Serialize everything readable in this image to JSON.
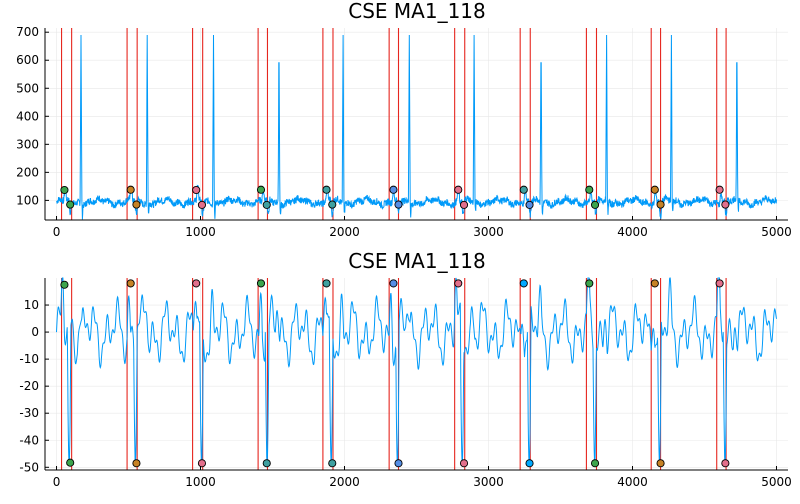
{
  "colors": {
    "signal": "#009af9",
    "marker_line": "#e6261f",
    "grid": "#e8e8e8",
    "axis": "#000000",
    "point_palette": [
      "#3da44d",
      "#c68225",
      "#e26f8b",
      "#3fa0a0",
      "#558ee5",
      "#00a9ff"
    ]
  },
  "chart_data": [
    {
      "type": "line",
      "title": "CSE MA1_118",
      "xlabel": "",
      "ylabel": "",
      "xlim": [
        -80,
        5080
      ],
      "ylim": [
        30,
        715
      ],
      "xticks": [
        0,
        1000,
        2000,
        3000,
        4000,
        5000
      ],
      "yticks": [
        100,
        200,
        300,
        400,
        500,
        600,
        700
      ],
      "grid": true,
      "legend": "none",
      "signal": {
        "baseline": 95,
        "noise": 12,
        "r_peak_value": 690,
        "r_peak_offset": 170,
        "beat_starts": [
          30,
          490,
          950,
          1405,
          1850,
          2310,
          2760,
          3225,
          3680,
          4130,
          4585
        ]
      },
      "vertical_lines": [
        35,
        105,
        490,
        560,
        945,
        1015,
        1400,
        1465,
        1850,
        1920,
        2310,
        2375,
        2765,
        2835,
        3220,
        3290,
        3680,
        3750,
        4130,
        4195,
        4585,
        4650
      ],
      "points": [
        {
          "x": 55,
          "y": 137,
          "color": "#3da44d"
        },
        {
          "x": 95,
          "y": 85,
          "color": "#3da44d"
        },
        {
          "x": 515,
          "y": 138,
          "color": "#c68225"
        },
        {
          "x": 555,
          "y": 85,
          "color": "#c68225"
        },
        {
          "x": 970,
          "y": 137,
          "color": "#e26f8b"
        },
        {
          "x": 1010,
          "y": 84,
          "color": "#e26f8b"
        },
        {
          "x": 1420,
          "y": 138,
          "color": "#3da44d"
        },
        {
          "x": 1460,
          "y": 84,
          "color": "#3fa0a0"
        },
        {
          "x": 1875,
          "y": 138,
          "color": "#3fa0a0"
        },
        {
          "x": 1915,
          "y": 85,
          "color": "#3fa0a0"
        },
        {
          "x": 2340,
          "y": 138,
          "color": "#558ee5"
        },
        {
          "x": 2375,
          "y": 85,
          "color": "#558ee5"
        },
        {
          "x": 2790,
          "y": 138,
          "color": "#e26f8b"
        },
        {
          "x": 2830,
          "y": 84,
          "color": "#e26f8b"
        },
        {
          "x": 3245,
          "y": 138,
          "color": "#3fa0a0"
        },
        {
          "x": 3285,
          "y": 84,
          "color": "#558ee5"
        },
        {
          "x": 3700,
          "y": 138,
          "color": "#3da44d"
        },
        {
          "x": 3740,
          "y": 84,
          "color": "#3da44d"
        },
        {
          "x": 4155,
          "y": 138,
          "color": "#c68225"
        },
        {
          "x": 4195,
          "y": 85,
          "color": "#c68225"
        },
        {
          "x": 4605,
          "y": 138,
          "color": "#e26f8b"
        },
        {
          "x": 4645,
          "y": 85,
          "color": "#e26f8b"
        }
      ]
    },
    {
      "type": "line",
      "title": "CSE MA1_118",
      "xlabel": "",
      "ylabel": "",
      "xlim": [
        -80,
        5080
      ],
      "ylim": [
        -51,
        20
      ],
      "xticks": [
        0,
        1000,
        2000,
        3000,
        4000,
        5000
      ],
      "yticks": [
        -50,
        -40,
        -30,
        -20,
        -10,
        0,
        10
      ],
      "grid": true,
      "legend": "none",
      "signal": {
        "baseline": 0,
        "amplitude": 12,
        "peak_value": 18,
        "trough_value": -48.5,
        "beat_starts": [
          30,
          490,
          950,
          1405,
          1850,
          2310,
          2760,
          3225,
          3680,
          4130,
          4585
        ]
      },
      "vertical_lines": [
        35,
        105,
        490,
        560,
        945,
        1015,
        1400,
        1465,
        1850,
        1920,
        2310,
        2375,
        2765,
        2835,
        3220,
        3290,
        3680,
        3750,
        4130,
        4195,
        4585,
        4650
      ],
      "points": [
        {
          "x": 55,
          "y": 17.5,
          "color": "#3da44d"
        },
        {
          "x": 95,
          "y": -48.3,
          "color": "#3da44d"
        },
        {
          "x": 515,
          "y": 18,
          "color": "#c68225"
        },
        {
          "x": 555,
          "y": -48.5,
          "color": "#c68225"
        },
        {
          "x": 970,
          "y": 18,
          "color": "#e26f8b"
        },
        {
          "x": 1010,
          "y": -48.5,
          "color": "#e26f8b"
        },
        {
          "x": 1420,
          "y": 18,
          "color": "#3da44d"
        },
        {
          "x": 1460,
          "y": -48.5,
          "color": "#3fa0a0"
        },
        {
          "x": 1875,
          "y": 18,
          "color": "#3fa0a0"
        },
        {
          "x": 1915,
          "y": -48.5,
          "color": "#3fa0a0"
        },
        {
          "x": 2340,
          "y": 18,
          "color": "#558ee5"
        },
        {
          "x": 2375,
          "y": -48.5,
          "color": "#558ee5"
        },
        {
          "x": 2790,
          "y": 18,
          "color": "#e26f8b"
        },
        {
          "x": 2830,
          "y": -48.5,
          "color": "#e26f8b"
        },
        {
          "x": 3245,
          "y": 18,
          "color": "#00a9ff"
        },
        {
          "x": 3285,
          "y": -48.5,
          "color": "#00a9ff"
        },
        {
          "x": 3700,
          "y": 18,
          "color": "#3da44d"
        },
        {
          "x": 3740,
          "y": -48.5,
          "color": "#3da44d"
        },
        {
          "x": 4155,
          "y": 18,
          "color": "#c68225"
        },
        {
          "x": 4195,
          "y": -48.5,
          "color": "#c68225"
        },
        {
          "x": 4605,
          "y": 18,
          "color": "#e26f8b"
        },
        {
          "x": 4645,
          "y": -48.5,
          "color": "#e26f8b"
        }
      ]
    }
  ]
}
